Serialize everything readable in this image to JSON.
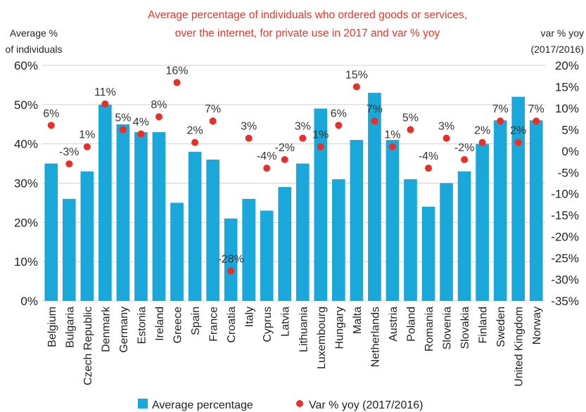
{
  "chart_data": {
    "type": "bar",
    "title_lines": [
      "Average percentage of individuals who ordered goods or services,",
      "over the internet, for private use in 2017 and var % yoy"
    ],
    "y_left_title_lines": [
      "Average %",
      "of individuals"
    ],
    "y_right_title_lines": [
      "var % yoy",
      "(2017/2016)"
    ],
    "categories": [
      "Belgium",
      "Bulgaria",
      "Czech Republic",
      "Denmark",
      "Germany",
      "Estonia",
      "Ireland",
      "Greece",
      "Spain",
      "France",
      "Croatia",
      "Italy",
      "Cyprus",
      "Latvia",
      "Lithuania",
      "Luxembourg",
      "Hungary",
      "Malta",
      "Netherlands",
      "Austria",
      "Poland",
      "Romania",
      "Slovenia",
      "Slovakia",
      "Finland",
      "Sweden",
      "United Kingdom",
      "Norway"
    ],
    "series": [
      {
        "name": "Average percentage",
        "kind": "bar",
        "axis": "left",
        "values": [
          35,
          26,
          33,
          50,
          45,
          43,
          43,
          25,
          38,
          36,
          21,
          26,
          23,
          29,
          35,
          49,
          31,
          41,
          53,
          41,
          31,
          24,
          30,
          33,
          40,
          46,
          52,
          46
        ]
      },
      {
        "name": "Var % yoy (2017/2016)",
        "kind": "scatter",
        "axis": "right",
        "values": [
          6,
          -3,
          1,
          11,
          5,
          4,
          8,
          16,
          2,
          7,
          -28,
          3,
          -4,
          -2,
          3,
          1,
          6,
          15,
          7,
          1,
          5,
          -4,
          3,
          -2,
          2,
          7,
          2,
          7
        ]
      }
    ],
    "ylim_left": [
      0,
      60
    ],
    "ylim_right": [
      -35,
      20
    ],
    "y_left_ticks": [
      "0%",
      "10%",
      "20%",
      "30%",
      "40%",
      "50%",
      "60%"
    ],
    "y_right_ticks": [
      "-35%",
      "-30%",
      "-25%",
      "-20%",
      "-15%",
      "-10%",
      "-5%",
      "0%",
      "5%",
      "10%",
      "15%",
      "20%"
    ],
    "grid": true,
    "legend_position": "bottom",
    "colors": {
      "bar": "#1aa7d9",
      "dot": "#e8302a",
      "title": "#e8382b",
      "grid": "#d0d0d0"
    }
  }
}
